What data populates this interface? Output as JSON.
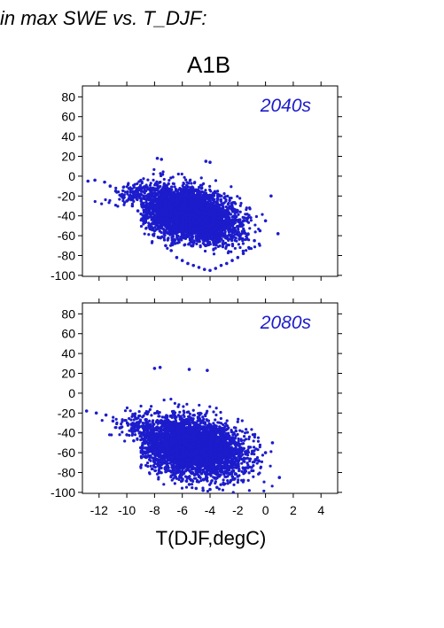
{
  "header": {
    "title": "in max SWE vs. T_DJF:",
    "scenario": "A1B"
  },
  "colors": {
    "points": "#1c1ccc",
    "panel_label": "#1c1ccc",
    "axis": "#000000"
  },
  "chart_data": [
    {
      "type": "scatter",
      "title": "2040s",
      "xlabel": "",
      "ylabel": "",
      "xlim": [
        -13.2,
        5.2
      ],
      "ylim": [
        -101,
        91
      ],
      "x_ticks": [
        -12,
        -10,
        -8,
        -6,
        -4,
        -2,
        0,
        2,
        4
      ],
      "y_ticks": [
        80,
        60,
        40,
        20,
        0,
        -20,
        -40,
        -60,
        -80,
        -100
      ],
      "x_tick_labels_shown": false,
      "grid": false,
      "series": [
        {
          "x": [
            -12.8,
            -12.3,
            -11.6,
            -11.2,
            -10.8,
            -10.4,
            -10.0,
            -9.6,
            -9.2,
            -8.8,
            -8.4,
            -8.0,
            -7.6,
            -7.2,
            -6.8,
            -6.4,
            -6.0,
            -5.6,
            -5.2,
            -4.8,
            -4.4,
            -4.0,
            -3.6,
            -3.2,
            -2.8,
            -2.4,
            -2.0,
            -1.6,
            -1.2,
            -0.8,
            -0.4,
            0.0,
            0.4,
            0.9,
            -7.8,
            -7.5,
            -4.3,
            -4.0
          ],
          "y": [
            -5,
            -4,
            -6,
            -10,
            -15,
            -20,
            -25,
            -30,
            -35,
            -42,
            -50,
            -55,
            -62,
            -70,
            -75,
            -82,
            -85,
            -88,
            -90,
            -92,
            -94,
            -95,
            -93,
            -90,
            -88,
            -85,
            -82,
            -78,
            -72,
            -65,
            -55,
            -45,
            -20,
            -58,
            18,
            17,
            15,
            14
          ]
        }
      ],
      "density_envelope": {
        "x": [
          -12.8,
          -12.0,
          -11.0,
          -10.0,
          -9.0,
          -8.5,
          -7.5,
          -6.5,
          -5.5,
          -4.5,
          -3.5,
          -2.5,
          -1.5,
          -0.5,
          0.3,
          0.8,
          0.9,
          0.5,
          -0.2,
          -1.0,
          -2.0,
          -3.0,
          -4.0,
          -5.0,
          -6.0,
          -7.0,
          -8.0,
          -9.0,
          -10.0,
          -11.0,
          -12.0
        ],
        "y_upper": [
          -4,
          -3,
          -2,
          0,
          3,
          5,
          9,
          11,
          13,
          15,
          14,
          12,
          10,
          8,
          6,
          5,
          -25,
          -40,
          -50,
          -62,
          -75,
          -85,
          -92,
          -95,
          -92,
          -88,
          -80,
          -70,
          -55,
          -40,
          -20
        ],
        "notes": "approximate outline traced clockwise"
      }
    },
    {
      "type": "scatter",
      "title": "2080s",
      "xlabel": "T(DJF,degC)",
      "ylabel": "",
      "xlim": [
        -13.2,
        5.2
      ],
      "ylim": [
        -101,
        91
      ],
      "x_ticks": [
        -12,
        -10,
        -8,
        -6,
        -4,
        -2,
        0,
        2,
        4
      ],
      "y_ticks": [
        80,
        60,
        40,
        20,
        0,
        -20,
        -40,
        -60,
        -80,
        -100
      ],
      "x_tick_labels_shown": true,
      "grid": false,
      "series": [
        {
          "x": [
            -12.9,
            -12.2,
            -11.5,
            -11.0,
            -10.5,
            -10.0,
            -9.5,
            -9.0,
            -8.5,
            -8.0,
            -7.5,
            -7.0,
            -6.5,
            -6.0,
            -5.5,
            -5.0,
            -4.5,
            -4.0,
            -3.5,
            -3.0,
            -2.5,
            -2.0,
            -1.5,
            -1.0,
            -0.5,
            0.0,
            0.5,
            1.0,
            -8.0,
            -7.6,
            -5.5,
            -4.2
          ],
          "y": [
            -18,
            -20,
            -22,
            -28,
            -35,
            -42,
            -48,
            -55,
            -60,
            -68,
            -72,
            -78,
            -84,
            -88,
            -92,
            -96,
            -98,
            -97,
            -95,
            -92,
            -88,
            -84,
            -80,
            -75,
            -68,
            -60,
            -50,
            -85,
            25,
            26,
            24,
            23
          ]
        }
      ],
      "density_envelope": {
        "x": [
          -12.9,
          -12.0,
          -11.0,
          -10.0,
          -9.0,
          -8.0,
          -7.0,
          -6.0,
          -5.0,
          -4.0,
          -3.0,
          -2.0,
          -1.0,
          0.0,
          0.6,
          1.0,
          0.6,
          0.0,
          -1.0,
          -2.0,
          -3.0,
          -4.0,
          -5.0,
          -6.0,
          -7.0,
          -8.0,
          -9.0,
          -10.0,
          -11.0,
          -12.0
        ],
        "y_upper": [
          -18,
          -16,
          -14,
          -10,
          -5,
          5,
          12,
          16,
          18,
          20,
          15,
          10,
          5,
          2,
          -10,
          -90,
          -92,
          -95,
          -97,
          -99,
          -99,
          -99,
          -98,
          -95,
          -90,
          -82,
          -72,
          -62,
          -48,
          -32
        ],
        "notes": "approximate outline traced clockwise"
      }
    }
  ]
}
